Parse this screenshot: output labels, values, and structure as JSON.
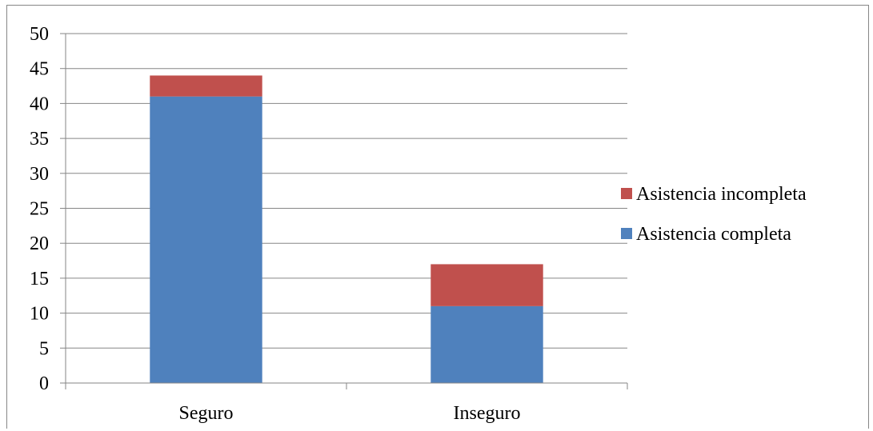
{
  "chart_data": {
    "type": "bar",
    "stacked": true,
    "title": "",
    "xlabel": "",
    "ylabel": "",
    "categories": [
      "Seguro",
      "Inseguro"
    ],
    "series": [
      {
        "name": "Asistencia completa",
        "values": [
          41,
          11
        ],
        "color": "#4F81BD"
      },
      {
        "name": "Asistencia incompleta",
        "values": [
          3,
          6
        ],
        "color": "#C0504D"
      }
    ],
    "ylim": [
      0,
      50
    ],
    "yticks": [
      "0",
      "5",
      "10",
      "15",
      "20",
      "25",
      "30",
      "35",
      "40",
      "45",
      "50"
    ],
    "grid": true,
    "legend_position": "right",
    "legend_order": [
      "Asistencia incompleta",
      "Asistencia completa"
    ]
  }
}
